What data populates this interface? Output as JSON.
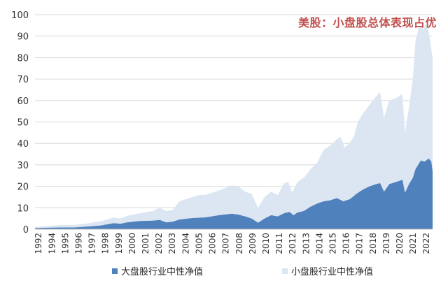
{
  "chart_data": {
    "type": "area",
    "title": "美股：小盘股总体表现占优",
    "xlabel": "",
    "ylabel": "",
    "ylim": [
      0,
      100
    ],
    "yticks": [
      0,
      10,
      20,
      30,
      40,
      50,
      60,
      70,
      80,
      90,
      100
    ],
    "xticks": [
      "1992",
      "1994",
      "1995",
      "1996",
      "1997",
      "1998",
      "1999",
      "2000",
      "2001",
      "2002",
      "2003",
      "2004",
      "2005",
      "2006",
      "2007",
      "2008",
      "2009",
      "2010",
      "2011",
      "2012",
      "2013",
      "2014",
      "2015",
      "2016",
      "2017",
      "2018",
      "2019",
      "2020",
      "2021",
      "2022"
    ],
    "grid": "horizontal",
    "legend_position": "bottom",
    "stacking": "overlay",
    "series": [
      {
        "name": "小盘股行业中性净值",
        "color": "#dce6f2",
        "points": [
          [
            1992.0,
            1.0
          ],
          [
            1993.0,
            1.5
          ],
          [
            1994.0,
            2.0
          ],
          [
            1995.0,
            2.0
          ],
          [
            1996.0,
            2.7
          ],
          [
            1997.0,
            3.7
          ],
          [
            1998.0,
            5.5
          ],
          [
            1998.5,
            5.0
          ],
          [
            1999.0,
            6.2
          ],
          [
            2000.0,
            7.5
          ],
          [
            2001.0,
            8.5
          ],
          [
            2001.5,
            10.0
          ],
          [
            2002.0,
            8.5
          ],
          [
            2002.5,
            9.0
          ],
          [
            2003.0,
            13.0
          ],
          [
            2004.0,
            15.0
          ],
          [
            2004.5,
            16.0
          ],
          [
            2005.0,
            16.0
          ],
          [
            2006.0,
            18.0
          ],
          [
            2007.0,
            20.5
          ],
          [
            2007.5,
            20.0
          ],
          [
            2008.0,
            17.5
          ],
          [
            2008.5,
            16.5
          ],
          [
            2009.0,
            10.0
          ],
          [
            2009.5,
            15.0
          ],
          [
            2010.0,
            17.5
          ],
          [
            2010.5,
            16.0
          ],
          [
            2011.0,
            21.5
          ],
          [
            2011.3,
            22.0
          ],
          [
            2011.6,
            17.0
          ],
          [
            2012.0,
            22.0
          ],
          [
            2012.5,
            24.0
          ],
          [
            2013.0,
            28.0
          ],
          [
            2013.5,
            31.0
          ],
          [
            2014.0,
            37.0
          ],
          [
            2014.5,
            39.0
          ],
          [
            2015.0,
            42.0
          ],
          [
            2015.3,
            43.0
          ],
          [
            2015.6,
            38.0
          ],
          [
            2016.0,
            40.5
          ],
          [
            2016.3,
            43.0
          ],
          [
            2016.6,
            50.0
          ],
          [
            2017.0,
            54.0
          ],
          [
            2017.5,
            58.0
          ],
          [
            2018.0,
            62.0
          ],
          [
            2018.3,
            64.0
          ],
          [
            2018.6,
            52.0
          ],
          [
            2019.0,
            60.0
          ],
          [
            2019.5,
            61.0
          ],
          [
            2020.0,
            63.0
          ],
          [
            2020.2,
            45.0
          ],
          [
            2020.5,
            57.0
          ],
          [
            2020.8,
            70.0
          ],
          [
            2021.0,
            88.0
          ],
          [
            2021.3,
            95.0
          ],
          [
            2021.6,
            93.0
          ],
          [
            2021.8,
            96.0
          ],
          [
            2022.0,
            92.0
          ],
          [
            2022.3,
            80.0
          ]
        ]
      },
      {
        "name": "大盘股行业中性净值",
        "color": "#4f81bd",
        "points": [
          [
            1992.0,
            0.5
          ],
          [
            1993.0,
            0.7
          ],
          [
            1994.0,
            0.8
          ],
          [
            1995.0,
            0.8
          ],
          [
            1996.0,
            1.2
          ],
          [
            1997.0,
            1.7
          ],
          [
            1998.0,
            2.8
          ],
          [
            1998.5,
            2.5
          ],
          [
            1999.0,
            3.2
          ],
          [
            2000.0,
            3.8
          ],
          [
            2001.0,
            4.0
          ],
          [
            2001.5,
            4.3
          ],
          [
            2002.0,
            3.2
          ],
          [
            2002.5,
            3.5
          ],
          [
            2003.0,
            4.5
          ],
          [
            2004.0,
            5.2
          ],
          [
            2005.0,
            5.5
          ],
          [
            2006.0,
            6.5
          ],
          [
            2007.0,
            7.2
          ],
          [
            2007.5,
            6.8
          ],
          [
            2008.0,
            6.0
          ],
          [
            2008.5,
            5.0
          ],
          [
            2009.0,
            3.0
          ],
          [
            2009.5,
            5.0
          ],
          [
            2010.0,
            6.5
          ],
          [
            2010.5,
            6.0
          ],
          [
            2011.0,
            7.5
          ],
          [
            2011.4,
            8.0
          ],
          [
            2011.7,
            6.5
          ],
          [
            2012.0,
            7.8
          ],
          [
            2012.5,
            8.5
          ],
          [
            2013.0,
            10.5
          ],
          [
            2013.5,
            12.0
          ],
          [
            2014.0,
            13.0
          ],
          [
            2014.5,
            13.5
          ],
          [
            2015.0,
            14.5
          ],
          [
            2015.5,
            13.0
          ],
          [
            2016.0,
            14.0
          ],
          [
            2016.5,
            16.5
          ],
          [
            2017.0,
            18.5
          ],
          [
            2017.5,
            20.0
          ],
          [
            2018.0,
            21.0
          ],
          [
            2018.3,
            21.5
          ],
          [
            2018.6,
            17.5
          ],
          [
            2019.0,
            21.0
          ],
          [
            2019.5,
            22.0
          ],
          [
            2020.0,
            23.0
          ],
          [
            2020.2,
            17.0
          ],
          [
            2020.5,
            21.0
          ],
          [
            2020.8,
            24.0
          ],
          [
            2021.0,
            28.0
          ],
          [
            2021.4,
            32.0
          ],
          [
            2021.7,
            31.5
          ],
          [
            2022.0,
            33.0
          ],
          [
            2022.2,
            31.5
          ],
          [
            2022.3,
            27.0
          ]
        ]
      }
    ]
  },
  "legend": {
    "items": [
      {
        "label": "大盘股行业中性净值",
        "color": "#4f81bd"
      },
      {
        "label": "小盘股行业中性净值",
        "color": "#dce6f2"
      }
    ]
  }
}
